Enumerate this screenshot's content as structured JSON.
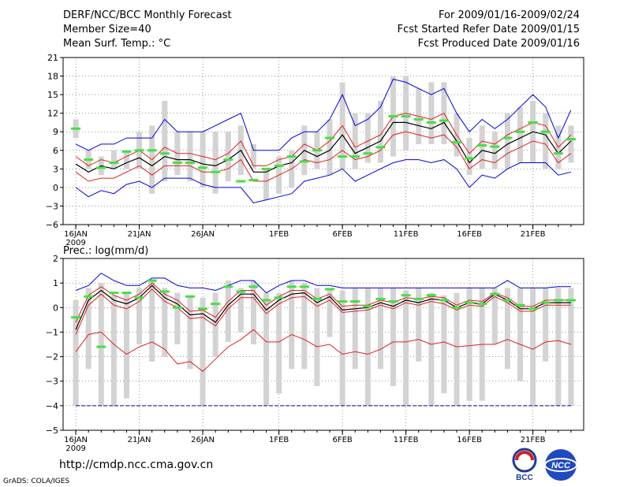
{
  "header": {
    "title": "DERF/NCC/BCC Monthly Forecast",
    "member": "Member Size=40",
    "variable": "Mean Surf. Temp.: °C",
    "period": "For 2009/01/16-2009/02/24",
    "refer": "Fcst Started Refer Date 2009/01/15",
    "produced": "Fcst Produced Date 2009/01/16"
  },
  "footer": {
    "url": "http://cmdp.ncc.cma.gov.cn",
    "grads": "GrADS: COLA/IGES",
    "logo1": "BCC",
    "logo2": "NCC"
  },
  "colors": {
    "box": "#d3d3d3",
    "obs": "#44e044",
    "mean": "#000000",
    "band": "#e02020",
    "envelope": "#0000e0",
    "grid": "#555555",
    "zero": "#0000aa"
  },
  "chart_data": [
    {
      "type": "line",
      "name": "temperature",
      "title": "Mean Surf. Temp.: °C",
      "ylim": [
        -6,
        21
      ],
      "yticks": [
        -6,
        -3,
        0,
        3,
        6,
        9,
        12,
        15,
        18,
        21
      ],
      "ytick_labels": [
        "−6",
        "−3",
        "0",
        "3",
        "6",
        "9",
        "12",
        "15",
        "18",
        "21"
      ],
      "xticks": [
        {
          "day": 1,
          "label": "16JAN",
          "sub": "2009"
        },
        {
          "day": 6,
          "label": "21JAN"
        },
        {
          "day": 11,
          "label": "26JAN"
        },
        {
          "day": 17,
          "label": "1FEB"
        },
        {
          "day": 22,
          "label": "6FEB"
        },
        {
          "day": 27,
          "label": "11FEB"
        },
        {
          "day": 32,
          "label": "16FEB"
        },
        {
          "day": 37,
          "label": "21FEB"
        }
      ],
      "xlim": [
        0,
        41
      ],
      "days": [
        1,
        2,
        3,
        4,
        5,
        6,
        7,
        8,
        9,
        10,
        11,
        12,
        13,
        14,
        15,
        16,
        17,
        18,
        19,
        20,
        21,
        22,
        23,
        24,
        25,
        26,
        27,
        28,
        29,
        30,
        31,
        32,
        33,
        34,
        35,
        36,
        37,
        38,
        39,
        40
      ],
      "box_low": [
        8,
        3,
        2,
        3,
        3,
        3,
        -1,
        1,
        2,
        1,
        0,
        -1,
        1,
        2,
        3,
        -2,
        -1,
        0,
        2,
        3,
        2,
        3,
        3,
        4,
        4,
        5,
        6,
        7,
        7,
        7,
        5,
        2,
        3,
        3,
        3,
        4,
        4,
        3,
        3,
        4
      ],
      "box_high": [
        11,
        6,
        5,
        6,
        6,
        9,
        10,
        14,
        9,
        9,
        9,
        9,
        9,
        10,
        7,
        3,
        5,
        6,
        10,
        9,
        11,
        17,
        12,
        12,
        14,
        18,
        18,
        16,
        17,
        17,
        12,
        8,
        10,
        9,
        12,
        13,
        14,
        12,
        10,
        10
      ],
      "obs": [
        9.5,
        4.5,
        3.2,
        4,
        5.8,
        6,
        6,
        5.5,
        4,
        4,
        3.2,
        2.5,
        4.5,
        1,
        1.2,
        3,
        3.5,
        5,
        4.2,
        6,
        8,
        5,
        5,
        5.5,
        6.5,
        11.5,
        11.5,
        11,
        10.5,
        10.8,
        7.3,
        4.7,
        6.8,
        6.6,
        8,
        9,
        10.5,
        9,
        5.5,
        7.8
      ],
      "mean": [
        3.8,
        2.5,
        3.5,
        3,
        4,
        4.8,
        3.5,
        5,
        4.5,
        4.5,
        3.8,
        3.5,
        4.5,
        6,
        2.5,
        2.5,
        3.5,
        4,
        6,
        5,
        6,
        8.5,
        5.5,
        6.5,
        7.5,
        10.5,
        10.5,
        10,
        9.5,
        10.5,
        7.5,
        4,
        6,
        5.5,
        7,
        8,
        9,
        8.5,
        5.5,
        7.5
      ],
      "upper": [
        5,
        3.5,
        4.5,
        4,
        5,
        6,
        4.5,
        6.5,
        5.5,
        5.5,
        5,
        4.5,
        5.5,
        7.5,
        3.5,
        3.5,
        4.5,
        5,
        7,
        6,
        7.5,
        10,
        6.5,
        7.5,
        8.5,
        11.5,
        12,
        11.5,
        11,
        12,
        8.5,
        5.5,
        7.5,
        7,
        8.5,
        9.5,
        10.5,
        10,
        6.5,
        8.5
      ],
      "lower": [
        2.5,
        1,
        1.5,
        1.5,
        2.5,
        3.5,
        2,
        3.5,
        3.5,
        3.5,
        2.5,
        2.5,
        3,
        4.5,
        1,
        1,
        2,
        3,
        4.5,
        4,
        4.5,
        6,
        4.5,
        5,
        6,
        8.5,
        9,
        8.5,
        8,
        8.5,
        6.5,
        3,
        4.5,
        4,
        5.5,
        6.5,
        7.5,
        7,
        4,
        5.5
      ],
      "env_max": [
        7,
        6,
        7,
        7,
        8,
        8,
        8,
        11,
        9,
        9,
        9,
        10,
        11,
        12,
        6,
        6,
        6,
        8,
        9,
        9,
        11,
        15,
        10,
        11,
        13,
        17.5,
        17,
        16,
        15,
        16,
        12,
        9,
        11,
        9.5,
        11,
        13,
        15,
        13,
        8,
        12.5
      ],
      "env_min": [
        0,
        -1.5,
        -0.5,
        -1,
        0.5,
        1,
        0,
        1.5,
        1.5,
        1.5,
        0.5,
        0,
        0,
        0,
        -2.5,
        -2,
        -1.5,
        -1,
        1,
        1.5,
        2,
        3,
        1,
        2,
        3,
        4,
        4.5,
        4.5,
        4,
        4.5,
        3,
        0,
        2,
        1.5,
        3,
        4,
        4,
        4,
        2,
        2.5
      ]
    },
    {
      "type": "line",
      "name": "precipitation",
      "title": "Prec.: log(mm/d)",
      "ylim": [
        -5,
        2
      ],
      "yticks": [
        -5,
        -4,
        -3,
        -2,
        -1,
        0,
        1,
        2
      ],
      "ytick_labels": [
        "−5",
        "−4",
        "−3",
        "−2",
        "−1",
        "0",
        "1",
        "2"
      ],
      "xticks": [
        {
          "day": 1,
          "label": "16JAN",
          "sub": "2009"
        },
        {
          "day": 6,
          "label": "21JAN"
        },
        {
          "day": 11,
          "label": "26JAN"
        },
        {
          "day": 17,
          "label": "1FEB"
        },
        {
          "day": 22,
          "label": "6FEB"
        },
        {
          "day": 27,
          "label": "11FEB"
        },
        {
          "day": 32,
          "label": "16FEB"
        },
        {
          "day": 37,
          "label": "21FEB"
        }
      ],
      "xlim": [
        0,
        41
      ],
      "days": [
        1,
        2,
        3,
        4,
        5,
        6,
        7,
        8,
        9,
        10,
        11,
        12,
        13,
        14,
        15,
        16,
        17,
        18,
        19,
        20,
        21,
        22,
        23,
        24,
        25,
        26,
        27,
        28,
        29,
        30,
        31,
        32,
        33,
        34,
        35,
        36,
        37,
        38,
        39,
        40
      ],
      "box_low": [
        -4,
        -2.5,
        -4,
        -4,
        -3.7,
        -1.5,
        -2.2,
        -2,
        -1.5,
        -2.5,
        -4,
        -2,
        -1.4,
        -1,
        -1.5,
        -4,
        -3.5,
        -2.5,
        -2.5,
        -3.2,
        -1.2,
        -4,
        -2.5,
        -4,
        -2.5,
        -3.2,
        -4,
        -2.2,
        -4,
        -3.5,
        -4,
        -3.8,
        -3.8,
        -1.5,
        -2.5,
        -3,
        -4,
        -2.2,
        -4,
        -4
      ],
      "box_high": [
        0.3,
        0.8,
        1,
        0.5,
        0.6,
        0.8,
        1.1,
        0.8,
        0.6,
        0.5,
        0.4,
        0.6,
        1.1,
        0.8,
        1.1,
        0.6,
        0.6,
        1.1,
        1,
        0.8,
        0.7,
        0.7,
        0.8,
        0.8,
        0.8,
        0.8,
        0.7,
        0.8,
        0.6,
        0.5,
        0.6,
        0.8,
        0.8,
        0.8,
        0.8,
        0.8,
        0.8,
        0.8,
        0.8,
        0.8
      ],
      "obs": [
        -0.4,
        0.45,
        -1.6,
        0.6,
        0.6,
        0.4,
        1.1,
        0.65,
        0,
        0.45,
        -0.05,
        0.15,
        0.85,
        0.65,
        0.85,
        0.3,
        0.4,
        0.85,
        0.85,
        0.35,
        0.75,
        0.25,
        0.25,
        0.05,
        0.35,
        0.25,
        0.5,
        0.35,
        0.5,
        0.3,
        0,
        0.2,
        0.15,
        0.55,
        0.3,
        0.1,
        -0.05,
        0.2,
        0.3,
        0.3
      ],
      "mean": [
        -0.9,
        0.3,
        0.7,
        0.3,
        0.15,
        0.4,
        0.9,
        0.4,
        0.15,
        -0.3,
        -0.25,
        -0.6,
        0.1,
        0.55,
        0.55,
        -0.1,
        0.3,
        0.55,
        0.6,
        0.2,
        0.45,
        -0.1,
        -0.05,
        0,
        0.2,
        0.05,
        0.3,
        0.2,
        0.35,
        0.3,
        0,
        0.2,
        0.15,
        0.55,
        0.3,
        -0.05,
        -0.05,
        0.2,
        0.2,
        0.2
      ],
      "upper": [
        -0.6,
        0.5,
        0.85,
        0.5,
        0.3,
        0.55,
        1,
        0.55,
        0.3,
        -0.15,
        -0.1,
        -0.4,
        0.25,
        0.7,
        0.7,
        0.1,
        0.45,
        0.7,
        0.7,
        0.35,
        0.55,
        0.05,
        0.1,
        0.1,
        0.3,
        0.2,
        0.4,
        0.35,
        0.45,
        0.4,
        0.1,
        0.3,
        0.25,
        0.6,
        0.4,
        0.05,
        0.05,
        0.3,
        0.3,
        0.3
      ],
      "lower": [
        -1.1,
        0.1,
        0.55,
        0.1,
        -0.05,
        0.25,
        0.75,
        0.25,
        0,
        -0.45,
        -0.4,
        -0.75,
        -0.05,
        0.4,
        0.4,
        -0.25,
        0.15,
        0.4,
        0.45,
        0.05,
        0.3,
        -0.2,
        -0.15,
        -0.1,
        0.1,
        -0.05,
        0.2,
        0.1,
        0.25,
        0.15,
        -0.1,
        0.1,
        0.05,
        0.45,
        0.2,
        -0.15,
        -0.15,
        0.1,
        0.1,
        0.1
      ],
      "env_max": [
        0.7,
        0.9,
        1.4,
        1.1,
        0.9,
        0.9,
        1.2,
        1.2,
        0.9,
        0.8,
        0.8,
        0.7,
        0.9,
        1.1,
        1.1,
        0.6,
        0.9,
        1.1,
        1.1,
        0.9,
        0.9,
        0.8,
        0.8,
        0.8,
        0.8,
        0.8,
        0.8,
        0.8,
        0.8,
        0.8,
        0.8,
        0.8,
        0.8,
        0.8,
        1.1,
        0.8,
        0.8,
        0.8,
        0.85,
        0.85
      ],
      "env_min": [
        -1.8,
        -1.1,
        -1,
        -1.5,
        -1.9,
        -1.6,
        -1.4,
        -1.7,
        -2.3,
        -2.2,
        -2.6,
        -2.1,
        -1.6,
        -1.3,
        -0.9,
        -1.4,
        -1.4,
        -1.1,
        -1.3,
        -1.6,
        -1.5,
        -1.9,
        -1.8,
        -1.9,
        -1.7,
        -1.4,
        -1.4,
        -1.3,
        -1.5,
        -1.4,
        -1.6,
        -1.55,
        -1.5,
        -1.5,
        -1.3,
        -1.5,
        -1.7,
        -1.4,
        -1.35,
        -1.5
      ]
    }
  ]
}
